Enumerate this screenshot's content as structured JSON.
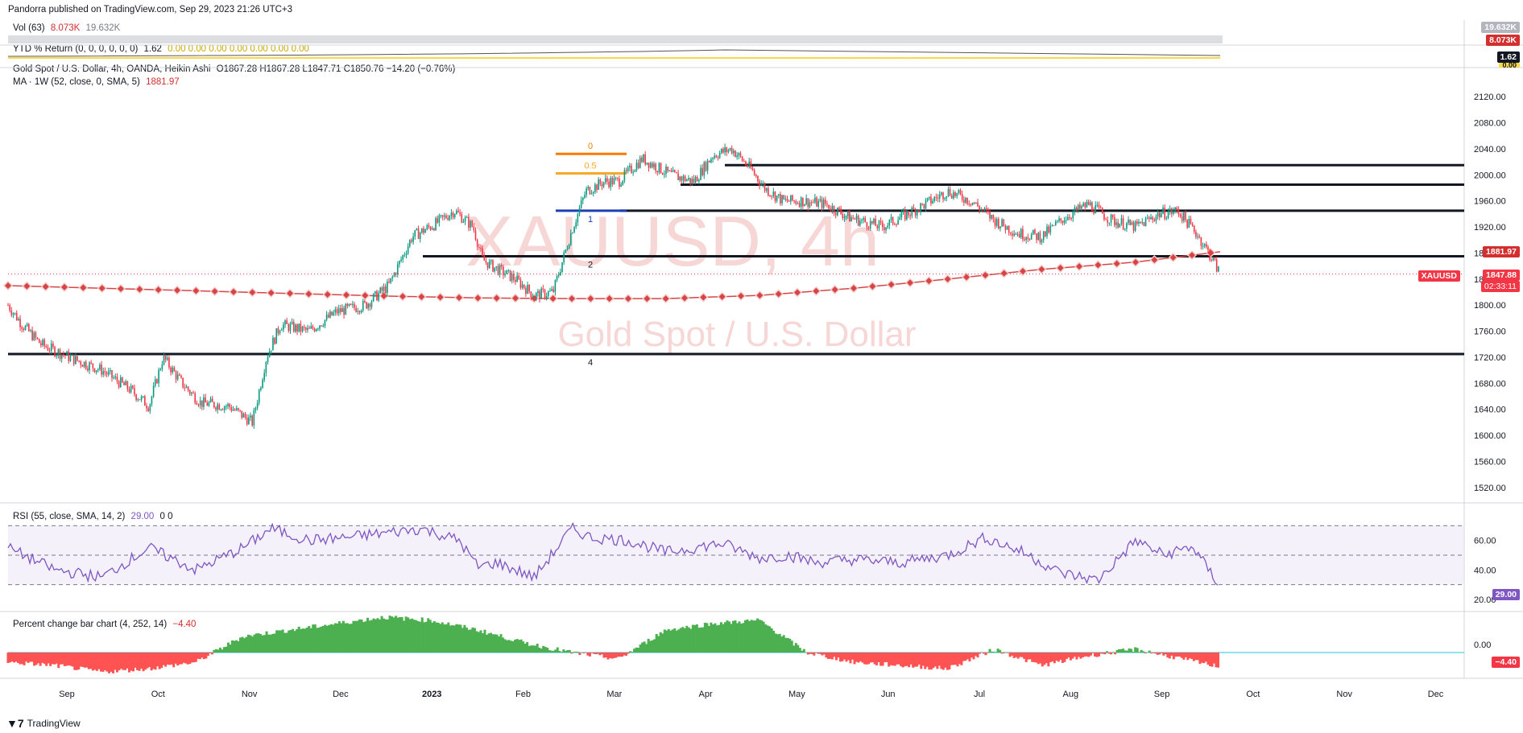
{
  "header": {
    "publisher": "Pandorra published on TradingView.com, Sep 29, 2023 21:26 UTC+3"
  },
  "vol": {
    "label": "Vol (63)",
    "v1": "8.073K",
    "v2": "19.632K",
    "tag1": "19.632K",
    "tag2": "8.073K"
  },
  "ytd": {
    "label": "YTD % Return (0, 0, 0, 0, 0, 0)",
    "v1": "1.62",
    "v2": "0.00 0.00 0.00 0.00 0.00 0.00 0.00",
    "tag1": "1.62",
    "tag2": "0.00"
  },
  "main": {
    "title": "Gold Spot / U.S. Dollar, 4h, OANDA, Heikin Ashi",
    "ohlc": "O1867.28  H1867.28  L1847.71  C1850.76  −14.20 (−0.76%)",
    "ma_label": "MA · 1W (52, close, 0, SMA, 5)",
    "ma_value": "1881.97",
    "watermark_symbol": "XAUUSD, 4h",
    "watermark_name": "Gold Spot / U.S. Dollar",
    "price_tag": "1847.88",
    "symbol_tag": "XAUUSD",
    "countdown": "02:33:11",
    "ma_tag": "1881.97"
  },
  "rsi": {
    "label": "RSI (55, close, SMA, 14, 2)",
    "value": "29.00",
    "extra": "0 0",
    "tag": "29.00"
  },
  "pct": {
    "label": "Percent change bar chart (4, 252, 14)",
    "value": "−4.40",
    "tag": "−4.40"
  },
  "footer": {
    "brand": "TradingView"
  },
  "colors": {
    "bull": "#089981",
    "bear": "#f23645",
    "ma": "#d64545",
    "rsi": "#7e57c2",
    "pos": "#4caf50",
    "neg": "#ff5252"
  },
  "chart_data": {
    "type": "line",
    "title": "Gold Spot / U.S. Dollar, 4h, OANDA, Heikin Ashi",
    "x_labels": [
      "Sep",
      "Oct",
      "Nov",
      "Dec",
      "2023",
      "Feb",
      "Mar",
      "Apr",
      "May",
      "Jun",
      "Jul",
      "Aug",
      "Sep",
      "Oct",
      "Nov",
      "Dec"
    ],
    "y_ticks": [
      "2120.00",
      "2080.00",
      "2040.00",
      "2000.00",
      "1960.00",
      "1920.00",
      "1880.00",
      "1840.00",
      "1800.00",
      "1760.00",
      "1720.00",
      "1680.00",
      "1640.00",
      "1600.00",
      "1560.00",
      "1520.00"
    ],
    "ylim": [
      1505,
      2145
    ],
    "price_series": {
      "name": "XAUUSD",
      "x": [
        0,
        0.15,
        0.35,
        0.65,
        1.0,
        1.3,
        1.5,
        1.65,
        1.85,
        2.05,
        2.35,
        2.6,
        2.75,
        2.9,
        3.2,
        3.5,
        3.8,
        4.05,
        4.3,
        4.55,
        4.75,
        4.95,
        5.05,
        5.15,
        5.4,
        5.6,
        5.8,
        6.0,
        6.15,
        6.35,
        6.5,
        6.75,
        7.05,
        7.3,
        7.5,
        7.7,
        7.9,
        8.05,
        8.25,
        8.45,
        8.7,
        8.95,
        9.3,
        9.7,
        10.0,
        10.25,
        10.5,
        10.75,
        11.0,
        11.25,
        11.5,
        11.75,
        12.0,
        12.25,
        12.45,
        12.65,
        12.8,
        12.9
      ],
      "values": [
        1800,
        1770,
        1740,
        1720,
        1700,
        1670,
        1645,
        1720,
        1680,
        1650,
        1645,
        1620,
        1720,
        1770,
        1760,
        1790,
        1800,
        1830,
        1905,
        1925,
        1945,
        1920,
        1870,
        1860,
        1840,
        1815,
        1820,
        1915,
        1975,
        1990,
        1990,
        2025,
        2000,
        1990,
        2030,
        2040,
        2010,
        1980,
        1960,
        1960,
        1955,
        1935,
        1920,
        1950,
        1975,
        1960,
        1930,
        1910,
        1905,
        1935,
        1955,
        1930,
        1920,
        1940,
        1945,
        1910,
        1875,
        1848
      ]
    },
    "ma_series": {
      "name": "MA · 1W (52, close, 0, SMA, 5)",
      "x": [
        0,
        1,
        2,
        3,
        4,
        5,
        6,
        7,
        8,
        9,
        10,
        11,
        12,
        12.9
      ],
      "values": [
        1830,
        1826,
        1822,
        1818,
        1814,
        1811,
        1810,
        1810,
        1815,
        1826,
        1840,
        1855,
        1866,
        1882
      ]
    },
    "levels": [
      2015,
      1985,
      1945,
      1875,
      1725
    ],
    "fib": [
      {
        "label": "0",
        "value": 2015,
        "color": "#f57c00"
      },
      {
        "label": "0.5",
        "value": 1985,
        "color": "#f9a825"
      },
      {
        "label": "1",
        "value": 1945,
        "color": "#1e40af"
      },
      {
        "label": "2",
        "value": 1875,
        "color": "#131722"
      },
      {
        "label": "4",
        "value": 1725,
        "color": "#131722"
      }
    ],
    "rsi": {
      "name": "RSI",
      "yticks": [
        "60.00",
        "40.00",
        "20.00"
      ],
      "ylim": [
        20,
        80
      ],
      "bands": [
        70,
        50,
        30
      ],
      "x": [
        0,
        0.5,
        1.0,
        1.5,
        2.0,
        2.5,
        2.8,
        3.2,
        3.6,
        4.0,
        4.4,
        4.8,
        5.0,
        5.2,
        5.6,
        6.0,
        6.2,
        6.6,
        7.0,
        7.3,
        7.6,
        8.0,
        8.3,
        8.6,
        9.0,
        9.5,
        10.0,
        10.4,
        10.8,
        11.2,
        11.6,
        12.0,
        12.3,
        12.6,
        12.9
      ],
      "values": [
        55,
        40,
        35,
        55,
        40,
        55,
        68,
        60,
        62,
        65,
        68,
        60,
        42,
        45,
        35,
        68,
        62,
        60,
        52,
        55,
        58,
        48,
        50,
        45,
        47,
        45,
        50,
        62,
        52,
        38,
        33,
        60,
        50,
        56,
        29
      ]
    },
    "pct_change": {
      "name": "Percent change bar chart",
      "yticks": [
        "0.00"
      ],
      "x": [
        0,
        0.5,
        1.0,
        1.5,
        2.0,
        2.5,
        3.0,
        3.5,
        4.0,
        4.5,
        5.0,
        5.5,
        6.0,
        6.5,
        7.0,
        7.5,
        8.0,
        8.5,
        9.0,
        9.5,
        10.0,
        10.5,
        11.0,
        11.5,
        12.0,
        12.5,
        12.9
      ],
      "values": [
        -3,
        -4,
        -6,
        -5,
        -3,
        5,
        7,
        9,
        11,
        10,
        7,
        3,
        0,
        -2,
        7,
        9,
        10,
        0,
        -3,
        -4,
        -5,
        1,
        -4,
        -1,
        1,
        -2,
        -4.4
      ]
    }
  }
}
